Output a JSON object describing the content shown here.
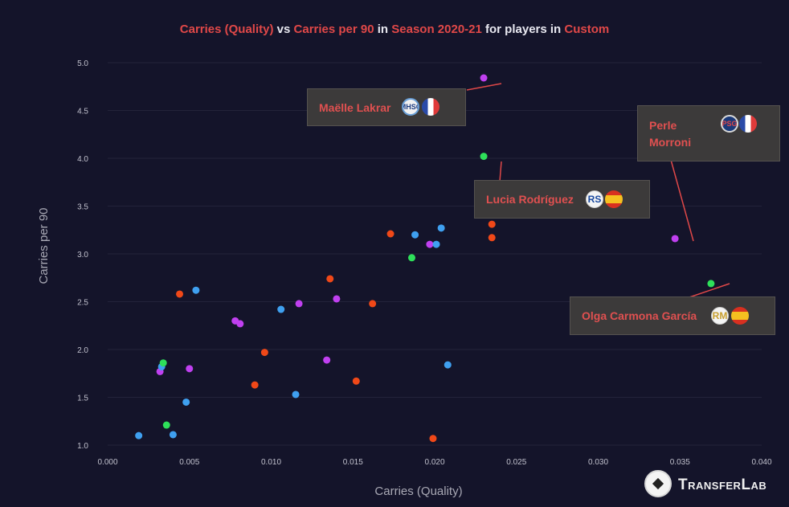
{
  "title": {
    "part1": "Carries (Quality)",
    "part2": " vs ",
    "part3": "Carries per 90",
    "part4": " in ",
    "part5": "Season 2020-21",
    "part6": " for players in ",
    "part7": "Custom"
  },
  "colors": {
    "background": "#14142a",
    "grid": "#23233a",
    "highlight": "#e04848",
    "annotation_bg": "#3c3a3a"
  },
  "chart_data": {
    "type": "scatter",
    "xlabel": "Carries (Quality)",
    "ylabel": "Carries per 90",
    "xlim": [
      0,
      0.04
    ],
    "ylim": [
      0.95,
      5.05
    ],
    "xticks": [
      "0.000",
      "0.005",
      "0.010",
      "0.015",
      "0.020",
      "0.025",
      "0.030",
      "0.035",
      "0.040"
    ],
    "yticks": [
      "1.0",
      "1.5",
      "2.0",
      "2.5",
      "3.0",
      "3.5",
      "4.0",
      "4.5",
      "5.0"
    ],
    "grid": true,
    "points": [
      {
        "x": 0.0019,
        "y": 1.1,
        "color": "#3fa0f0"
      },
      {
        "x": 0.004,
        "y": 1.11,
        "color": "#3fa0f0"
      },
      {
        "x": 0.0036,
        "y": 1.21,
        "color": "#2ee05a"
      },
      {
        "x": 0.0048,
        "y": 1.45,
        "color": "#3fa0f0"
      },
      {
        "x": 0.005,
        "y": 1.8,
        "color": "#c040f0"
      },
      {
        "x": 0.0032,
        "y": 1.77,
        "color": "#c040f0"
      },
      {
        "x": 0.0033,
        "y": 1.82,
        "color": "#3fa0f0"
      },
      {
        "x": 0.0034,
        "y": 1.86,
        "color": "#2ee05a"
      },
      {
        "x": 0.0044,
        "y": 2.58,
        "color": "#f04818"
      },
      {
        "x": 0.0054,
        "y": 2.62,
        "color": "#3fa0f0"
      },
      {
        "x": 0.0078,
        "y": 2.3,
        "color": "#c040f0"
      },
      {
        "x": 0.0081,
        "y": 2.27,
        "color": "#c040f0"
      },
      {
        "x": 0.009,
        "y": 1.63,
        "color": "#f04818"
      },
      {
        "x": 0.0096,
        "y": 1.97,
        "color": "#f04818"
      },
      {
        "x": 0.0106,
        "y": 2.42,
        "color": "#3fa0f0"
      },
      {
        "x": 0.0115,
        "y": 1.53,
        "color": "#3fa0f0"
      },
      {
        "x": 0.0117,
        "y": 2.48,
        "color": "#c040f0"
      },
      {
        "x": 0.0134,
        "y": 1.89,
        "color": "#c040f0"
      },
      {
        "x": 0.0136,
        "y": 2.74,
        "color": "#f04818"
      },
      {
        "x": 0.014,
        "y": 2.53,
        "color": "#c040f0"
      },
      {
        "x": 0.0152,
        "y": 1.67,
        "color": "#f04818"
      },
      {
        "x": 0.0162,
        "y": 2.48,
        "color": "#f04818"
      },
      {
        "x": 0.0173,
        "y": 3.21,
        "color": "#f04818"
      },
      {
        "x": 0.0188,
        "y": 3.2,
        "color": "#3fa0f0"
      },
      {
        "x": 0.0186,
        "y": 2.96,
        "color": "#2ee05a"
      },
      {
        "x": 0.0197,
        "y": 3.1,
        "color": "#c040f0"
      },
      {
        "x": 0.0201,
        "y": 3.1,
        "color": "#3fa0f0"
      },
      {
        "x": 0.0204,
        "y": 3.27,
        "color": "#3fa0f0"
      },
      {
        "x": 0.0199,
        "y": 1.07,
        "color": "#f04818"
      },
      {
        "x": 0.0208,
        "y": 1.84,
        "color": "#3fa0f0"
      },
      {
        "x": 0.023,
        "y": 4.84,
        "color": "#c040f0"
      },
      {
        "x": 0.023,
        "y": 4.02,
        "color": "#2ee05a"
      },
      {
        "x": 0.0235,
        "y": 3.31,
        "color": "#f04818"
      },
      {
        "x": 0.0235,
        "y": 3.17,
        "color": "#f04818"
      },
      {
        "x": 0.0347,
        "y": 3.16,
        "color": "#c040f0"
      },
      {
        "x": 0.0369,
        "y": 2.69,
        "color": "#2ee05a"
      }
    ]
  },
  "annotations": [
    {
      "name": "Maëlle Lakrar",
      "club": "MHSC",
      "flag": "fr"
    },
    {
      "name": "Perle\nMorroni",
      "club": "PSG",
      "flag": "fr"
    },
    {
      "name": "Lucia Rodríguez",
      "club": "RS",
      "flag": "es"
    },
    {
      "name": "Olga Carmona García",
      "club": "RM",
      "flag": "es"
    }
  ],
  "brand": {
    "name": "TransferLab"
  }
}
